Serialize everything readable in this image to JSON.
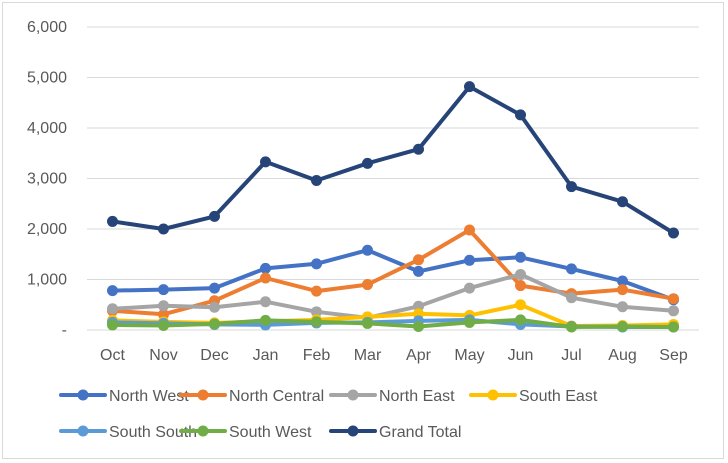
{
  "chart_data": {
    "type": "line",
    "title": "",
    "xlabel": "",
    "ylabel": "",
    "categories": [
      "Oct",
      "Nov",
      "Dec",
      "Jan",
      "Feb",
      "Mar",
      "Apr",
      "May",
      "Jun",
      "Jul",
      "Aug",
      "Sep"
    ],
    "ylim": [
      0,
      6000
    ],
    "yticks": [
      0,
      1000,
      2000,
      3000,
      4000,
      5000,
      6000
    ],
    "ytick_labels": [
      "-",
      "1,000",
      "2,000",
      "3,000",
      "4,000",
      "5,000",
      "6,000"
    ],
    "grid": "horizontal",
    "legend_position": "bottom",
    "series": [
      {
        "name": "North West",
        "color": "#4472C4",
        "values": [
          780,
          800,
          830,
          1220,
          1310,
          1580,
          1160,
          1380,
          1440,
          1210,
          970,
          600
        ]
      },
      {
        "name": "North Central",
        "color": "#ED7D31",
        "values": [
          380,
          310,
          580,
          1030,
          770,
          900,
          1390,
          1980,
          880,
          720,
          800,
          620
        ]
      },
      {
        "name": "North East",
        "color": "#A5A5A5",
        "values": [
          420,
          480,
          450,
          560,
          360,
          240,
          470,
          830,
          1100,
          640,
          460,
          380
        ]
      },
      {
        "name": "South East",
        "color": "#FFC000",
        "values": [
          190,
          160,
          140,
          170,
          200,
          260,
          320,
          290,
          500,
          80,
          90,
          110
        ]
      },
      {
        "name": "South South",
        "color": "#5B9BD5",
        "values": [
          150,
          130,
          110,
          100,
          140,
          150,
          180,
          200,
          110,
          70,
          60,
          60
        ]
      },
      {
        "name": "South West",
        "color": "#70AD47",
        "values": [
          100,
          90,
          120,
          190,
          160,
          130,
          70,
          150,
          200,
          60,
          70,
          60
        ]
      },
      {
        "name": "Grand Total",
        "color": "#264478",
        "values": [
          2150,
          2000,
          2250,
          3330,
          2960,
          3300,
          3580,
          4820,
          4260,
          2840,
          2540,
          1920
        ]
      }
    ]
  }
}
